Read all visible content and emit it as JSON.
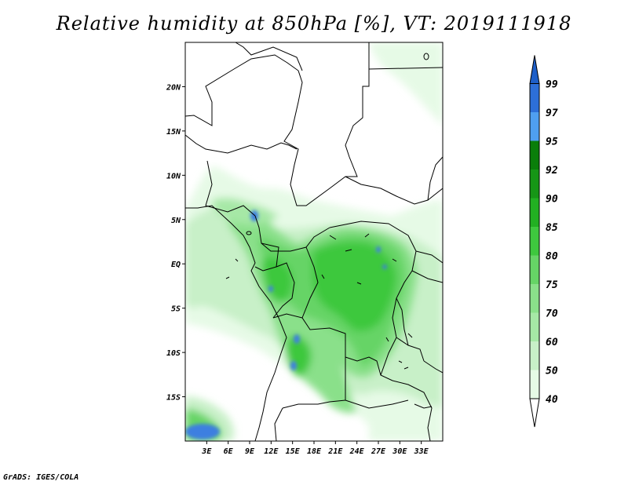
{
  "title": "Relative humidity at 850hPa [%], VT: 2019111918",
  "credit": "GrADS: IGES/COLA",
  "map": {
    "lon_range": [
      0,
      36
    ],
    "lat_range": [
      -20,
      25
    ],
    "lat_ticks": [
      {
        "value": 20,
        "label": "20N"
      },
      {
        "value": 15,
        "label": "15N"
      },
      {
        "value": 10,
        "label": "10N"
      },
      {
        "value": 5,
        "label": "5N"
      },
      {
        "value": 0,
        "label": "EQ"
      },
      {
        "value": -5,
        "label": "5S"
      },
      {
        "value": -10,
        "label": "10S"
      },
      {
        "value": -15,
        "label": "15S"
      }
    ],
    "lon_ticks": [
      {
        "value": 3,
        "label": "3E"
      },
      {
        "value": 6,
        "label": "6E"
      },
      {
        "value": 9,
        "label": "9E"
      },
      {
        "value": 12,
        "label": "12E"
      },
      {
        "value": 15,
        "label": "15E"
      },
      {
        "value": 18,
        "label": "18E"
      },
      {
        "value": 21,
        "label": "21E"
      },
      {
        "value": 24,
        "label": "24E"
      },
      {
        "value": 27,
        "label": "27E"
      },
      {
        "value": 30,
        "label": "30E"
      },
      {
        "value": 33,
        "label": "33E"
      }
    ]
  },
  "colorbar": {
    "levels": [
      {
        "label": "40",
        "color": "#ffffff"
      },
      {
        "label": "50",
        "color": "#e6fae6"
      },
      {
        "label": "60",
        "color": "#c8f0c8"
      },
      {
        "label": "70",
        "color": "#a6e8a6"
      },
      {
        "label": "75",
        "color": "#8ae08a"
      },
      {
        "label": "80",
        "color": "#66d466"
      },
      {
        "label": "85",
        "color": "#3ec83e"
      },
      {
        "label": "90",
        "color": "#22b022"
      },
      {
        "label": "92",
        "color": "#169616"
      },
      {
        "label": "95",
        "color": "#0a7e0a"
      },
      {
        "label": "97",
        "color": "#4f9ff0"
      },
      {
        "label": "99",
        "color": "#2d6fd8"
      }
    ],
    "top_color": "#1e5fc8",
    "bottom_color": "#ffffff"
  },
  "fields": {
    "colors": {
      "light": "#e6fae6",
      "pale": "#c8f0c8",
      "mid": "#a6e8a6",
      "green": "#8ae08a",
      "bright": "#66d466",
      "strong": "#3ec83e",
      "deep": "#22b022",
      "blue": "#3d7fe0"
    }
  }
}
